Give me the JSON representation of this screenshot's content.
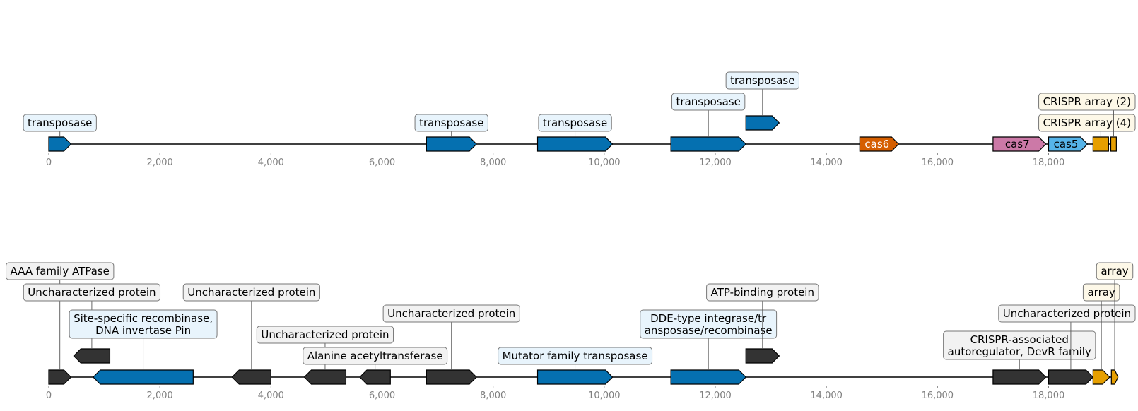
{
  "colors": {
    "transposase": "#0570b0",
    "cas6": "#d55e00",
    "cas7": "#cc79a7",
    "cas5": "#56b4e9",
    "crispr": "#e69f00",
    "other": "#333333",
    "backbone": "#000000",
    "tick": "#808080",
    "box_blue": "#e8f4fc",
    "box_gray": "#f2f2f2",
    "box_cream": "#fdf8e8"
  },
  "tracks": [
    {
      "axis": {
        "min": 0,
        "max": 19200,
        "ticks": [
          0,
          2000,
          4000,
          6000,
          8000,
          10000,
          12000,
          14000,
          16000,
          18000
        ],
        "tick_labels": [
          "0",
          "2,000",
          "4,000",
          "6,000",
          "8,000",
          "10,000",
          "12,000",
          "14,000",
          "16,000",
          "18,000"
        ]
      },
      "features": [
        {
          "start": 0,
          "end": 400,
          "strand": 1,
          "level": 0,
          "type": "transposase",
          "label": "transposase",
          "label_level": 1
        },
        {
          "start": 6800,
          "end": 7700,
          "strand": 1,
          "level": 0,
          "type": "transposase",
          "label": "transposase",
          "label_level": 1
        },
        {
          "start": 8800,
          "end": 10150,
          "strand": 1,
          "level": 0,
          "type": "transposase",
          "label": "transposase",
          "label_level": 1
        },
        {
          "start": 11200,
          "end": 12550,
          "strand": 1,
          "level": 0,
          "type": "transposase",
          "label": "transposase",
          "label_level": 2
        },
        {
          "start": 12550,
          "end": 13150,
          "strand": 1,
          "level": 1,
          "type": "transposase",
          "label": "transposase",
          "label_level": 3
        },
        {
          "start": 14600,
          "end": 15300,
          "strand": 1,
          "level": 0,
          "type": "cas6",
          "inline": "cas6",
          "inline_color": "#ffffff"
        },
        {
          "start": 17000,
          "end": 17950,
          "strand": 1,
          "level": 0,
          "type": "cas7",
          "inline": "cas7",
          "inline_color": "#000000"
        },
        {
          "start": 18000,
          "end": 18700,
          "strand": 1,
          "level": 0,
          "type": "cas5",
          "inline": "cas5",
          "inline_color": "#000000"
        },
        {
          "start": 18800,
          "end": 19080,
          "strand": 0,
          "level": 0,
          "type": "crispr",
          "label": "CRISPR array (4)",
          "label_level": 1
        },
        {
          "start": 19120,
          "end": 19220,
          "strand": 0,
          "level": 0,
          "type": "crispr",
          "label": "CRISPR array (2)",
          "label_level": 2
        }
      ]
    },
    {
      "axis": {
        "min": 0,
        "max": 19200,
        "ticks": [
          0,
          2000,
          4000,
          6000,
          8000,
          10000,
          12000,
          14000,
          16000,
          18000
        ],
        "tick_labels": [
          "0",
          "2,000",
          "4,000",
          "6,000",
          "8,000",
          "10,000",
          "12,000",
          "14,000",
          "16,000",
          "18,000"
        ]
      },
      "features": [
        {
          "start": 0,
          "end": 400,
          "strand": 1,
          "level": 0,
          "type": "other",
          "label": "AAA family ATPase",
          "label_level": 5
        },
        {
          "start": 450,
          "end": 1100,
          "strand": -1,
          "level": 1,
          "type": "other",
          "label": "Uncharacterized protein",
          "label_level": 4
        },
        {
          "start": 800,
          "end": 2600,
          "strand": -1,
          "level": 0,
          "type": "transposase",
          "label": "Site-specific recombinase,\nDNA invertase Pin",
          "label_level": 2.5,
          "box": "blue"
        },
        {
          "start": 3300,
          "end": 4000,
          "strand": -1,
          "level": 0,
          "type": "other",
          "label": "Uncharacterized protein",
          "label_level": 4
        },
        {
          "start": 4600,
          "end": 5350,
          "strand": -1,
          "level": 0,
          "type": "other",
          "label": "Uncharacterized protein",
          "label_level": 2
        },
        {
          "start": 5600,
          "end": 6150,
          "strand": -1,
          "level": 0,
          "type": "other",
          "label": "Alanine acetyltransferase",
          "label_level": 1
        },
        {
          "start": 6800,
          "end": 7700,
          "strand": 1,
          "level": 0,
          "type": "other",
          "label": "Uncharacterized protein",
          "label_level": 3
        },
        {
          "start": 8800,
          "end": 10150,
          "strand": 1,
          "level": 0,
          "type": "transposase",
          "label": "Mutator family transposase",
          "label_level": 1,
          "box": "blue"
        },
        {
          "start": 11200,
          "end": 12550,
          "strand": 1,
          "level": 0,
          "type": "transposase",
          "label": "DDE-type integrase/tr\nansposase/recombinase",
          "label_level": 2.5,
          "box": "blue"
        },
        {
          "start": 12550,
          "end": 13150,
          "strand": 1,
          "level": 1,
          "type": "other",
          "label": "ATP-binding protein",
          "label_level": 4
        },
        {
          "start": 17000,
          "end": 17950,
          "strand": 1,
          "level": 0,
          "type": "other",
          "label": "CRISPR-associated\nautoregulator, DevR family",
          "label_level": 1.5
        },
        {
          "start": 18000,
          "end": 18800,
          "strand": 1,
          "level": 0,
          "type": "other",
          "label": "Uncharacterized protein",
          "label_level": 3
        },
        {
          "start": 18800,
          "end": 19100,
          "strand": 1,
          "level": 0,
          "type": "crispr",
          "label": "array",
          "label_level": 4,
          "box": "cream"
        },
        {
          "start": 19130,
          "end": 19250,
          "strand": 1,
          "level": 0,
          "type": "crispr",
          "label": "array",
          "label_level": 5,
          "box": "cream"
        }
      ]
    }
  ]
}
